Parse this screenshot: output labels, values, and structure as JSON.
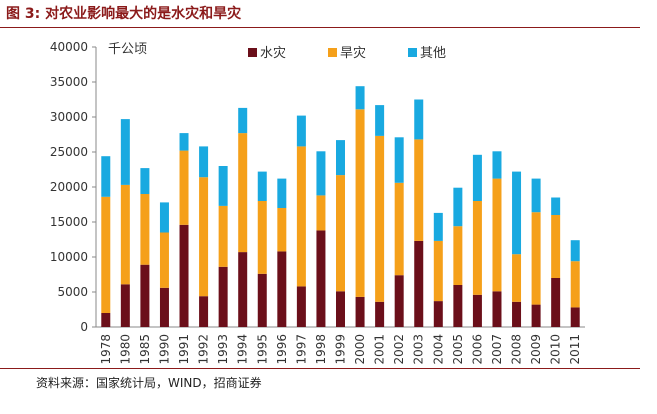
{
  "figure": {
    "title": "图 3:  对农业影响最大的是水灾和旱灾",
    "source": "资料来源：国家统计局，WIND，招商证券"
  },
  "chart_data": {
    "type": "bar",
    "stacked": true,
    "unit_label": "千公顷",
    "categories": [
      "1978",
      "1980",
      "1985",
      "1990",
      "1991",
      "1992",
      "1993",
      "1994",
      "1995",
      "1996",
      "1997",
      "1998",
      "1999",
      "2000",
      "2001",
      "2002",
      "2003",
      "2004",
      "2005",
      "2006",
      "2007",
      "2008",
      "2009",
      "2010",
      "2011"
    ],
    "series": [
      {
        "name": "水灾",
        "color": "#6b0f1a",
        "values": [
          2000,
          6100,
          8900,
          5600,
          14600,
          4400,
          8600,
          10700,
          7600,
          10800,
          5800,
          13800,
          5100,
          4300,
          3600,
          7400,
          12300,
          3700,
          6000,
          4600,
          5100,
          3600,
          3200,
          7000,
          2800
        ]
      },
      {
        "name": "旱灾",
        "color": "#f5a01a",
        "values": [
          16600,
          14200,
          10100,
          7900,
          10600,
          17000,
          8700,
          17000,
          10400,
          6200,
          20000,
          5000,
          16600,
          26800,
          23700,
          13200,
          14500,
          8600,
          8400,
          13400,
          16100,
          6800,
          13200,
          9000,
          6600
        ]
      },
      {
        "name": "其他",
        "color": "#19a9e0",
        "values": [
          5800,
          9400,
          3700,
          4300,
          2500,
          4400,
          5700,
          3600,
          4200,
          4200,
          4400,
          6300,
          5000,
          3300,
          4400,
          6500,
          5700,
          4000,
          5500,
          6600,
          3900,
          11800,
          4800,
          2500,
          3000
        ]
      }
    ],
    "ylim": [
      0,
      40000
    ],
    "yticks": [
      0,
      5000,
      10000,
      15000,
      20000,
      25000,
      30000,
      35000,
      40000
    ],
    "legend_position": "top-center",
    "grid": false
  }
}
